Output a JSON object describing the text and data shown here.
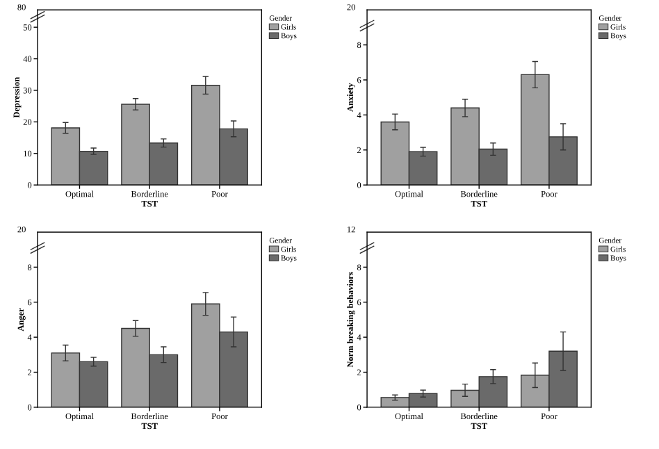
{
  "chart_data": [
    {
      "type": "bar",
      "categories": [
        "Optimal",
        "Borderline",
        "Poor"
      ],
      "xlabel": "TST",
      "ylabel": "Depression",
      "legend_title": "Gender",
      "legend": "right",
      "grid": false,
      "ylim": [
        0,
        55.5
      ],
      "yticks": [
        0,
        10,
        20,
        30,
        40,
        50
      ],
      "annotations": [
        "80"
      ],
      "series": [
        {
          "name": "Girls",
          "color": "#a0a0a0",
          "values": [
            18.1,
            25.6,
            31.6
          ],
          "errors": [
            1.7,
            1.8,
            2.8
          ]
        },
        {
          "name": "Boys",
          "color": "#6a6a6a",
          "values": [
            10.7,
            13.3,
            17.8
          ],
          "errors": [
            1.0,
            1.3,
            2.5
          ]
        }
      ]
    },
    {
      "type": "bar",
      "categories": [
        "Optimal",
        "Borderline",
        "Poor"
      ],
      "xlabel": "TST",
      "ylabel": "Anxiety",
      "legend_title": "Gender",
      "legend": "right",
      "grid": false,
      "ylim": [
        0,
        10
      ],
      "yticks": [
        0,
        2,
        4,
        6,
        8
      ],
      "annotations": [
        "20"
      ],
      "series": [
        {
          "name": "Girls",
          "color": "#a0a0a0",
          "values": [
            3.6,
            4.4,
            6.3
          ],
          "errors": [
            0.45,
            0.5,
            0.75
          ]
        },
        {
          "name": "Boys",
          "color": "#6a6a6a",
          "values": [
            1.9,
            2.05,
            2.75
          ],
          "errors": [
            0.25,
            0.35,
            0.75
          ]
        }
      ]
    },
    {
      "type": "bar",
      "categories": [
        "Optimal",
        "Borderline",
        "Poor"
      ],
      "xlabel": "TST",
      "ylabel": "Anger",
      "legend_title": "Gender",
      "legend": "right",
      "grid": false,
      "ylim": [
        0,
        10
      ],
      "yticks": [
        0,
        2,
        4,
        6,
        8
      ],
      "annotations": [
        "20"
      ],
      "series": [
        {
          "name": "Girls",
          "color": "#a0a0a0",
          "values": [
            3.1,
            4.5,
            5.9
          ],
          "errors": [
            0.45,
            0.45,
            0.65
          ]
        },
        {
          "name": "Boys",
          "color": "#6a6a6a",
          "values": [
            2.6,
            3.0,
            4.3
          ],
          "errors": [
            0.25,
            0.45,
            0.85
          ]
        }
      ]
    },
    {
      "type": "bar",
      "categories": [
        "Optimal",
        "Borderline",
        "Poor"
      ],
      "xlabel": "TST",
      "ylabel": "Norm breaking behaviors",
      "legend_title": "Gender",
      "legend": "right",
      "grid": false,
      "ylim": [
        0,
        10
      ],
      "yticks": [
        0,
        2,
        4,
        6,
        8
      ],
      "annotations": [
        "12"
      ],
      "series": [
        {
          "name": "Girls",
          "color": "#a0a0a0",
          "values": [
            0.55,
            0.97,
            1.83
          ],
          "errors": [
            0.15,
            0.35,
            0.7
          ]
        },
        {
          "name": "Boys",
          "color": "#6a6a6a",
          "values": [
            0.78,
            1.75,
            3.2
          ],
          "errors": [
            0.2,
            0.4,
            1.1
          ]
        }
      ]
    }
  ]
}
